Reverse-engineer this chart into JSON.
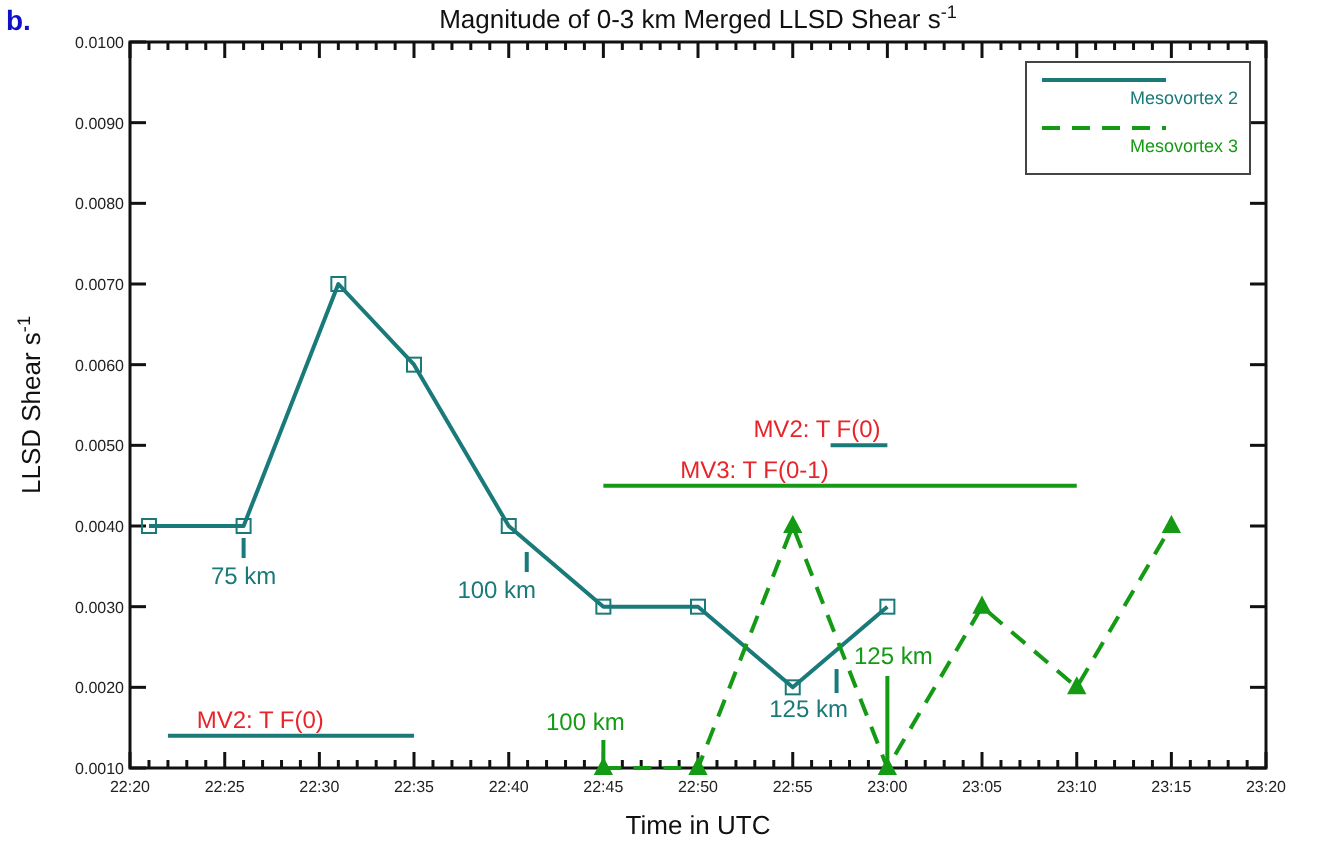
{
  "chart_data": {
    "type": "line",
    "title": "Magnitude of 0-3 km Merged LLSD Shear s$^{-1}$",
    "xlabel": "Time in UTC",
    "ylabel": "LLSD Shear s$^{-1}$",
    "xlim": [
      22.3333,
      23.3333
    ],
    "xticks": [
      {
        "value": 22.3333,
        "label": "22:20"
      },
      {
        "value": 22.35,
        "label": null
      },
      {
        "value": 22.3667,
        "label": null
      },
      {
        "value": 22.3833,
        "label": null
      },
      {
        "value": 22.4,
        "label": null
      },
      {
        "value": 22.4167,
        "label": "22:25"
      },
      {
        "value": 22.4333,
        "label": null
      },
      {
        "value": 22.45,
        "label": null
      },
      {
        "value": 22.4667,
        "label": null
      },
      {
        "value": 22.4833,
        "label": null
      },
      {
        "value": 22.5,
        "label": "22:30"
      },
      {
        "value": 22.5167,
        "label": null
      },
      {
        "value": 22.5333,
        "label": null
      },
      {
        "value": 22.55,
        "label": null
      },
      {
        "value": 22.5667,
        "label": null
      },
      {
        "value": 22.5833,
        "label": "22:35"
      },
      {
        "value": 22.6,
        "label": null
      },
      {
        "value": 22.6167,
        "label": null
      },
      {
        "value": 22.6333,
        "label": null
      },
      {
        "value": 22.65,
        "label": null
      },
      {
        "value": 22.6667,
        "label": "22:40"
      },
      {
        "value": 22.6833,
        "label": null
      },
      {
        "value": 22.7,
        "label": null
      },
      {
        "value": 22.7167,
        "label": null
      },
      {
        "value": 22.7333,
        "label": null
      },
      {
        "value": 22.75,
        "label": "22:45"
      },
      {
        "value": 22.7667,
        "label": null
      },
      {
        "value": 22.7833,
        "label": null
      },
      {
        "value": 22.8,
        "label": null
      },
      {
        "value": 22.8167,
        "label": null
      },
      {
        "value": 22.8333,
        "label": "22:50"
      },
      {
        "value": 22.85,
        "label": null
      },
      {
        "value": 22.8667,
        "label": null
      },
      {
        "value": 22.8833,
        "label": null
      },
      {
        "value": 22.9,
        "label": null
      },
      {
        "value": 22.9167,
        "label": "22:55"
      },
      {
        "value": 22.9333,
        "label": null
      },
      {
        "value": 22.95,
        "label": null
      },
      {
        "value": 22.9667,
        "label": null
      },
      {
        "value": 22.9833,
        "label": null
      },
      {
        "value": 23.0,
        "label": "23:00"
      },
      {
        "value": 23.0167,
        "label": null
      },
      {
        "value": 23.0333,
        "label": null
      },
      {
        "value": 23.05,
        "label": null
      },
      {
        "value": 23.0667,
        "label": null
      },
      {
        "value": 23.0833,
        "label": "23:05"
      },
      {
        "value": 23.1,
        "label": null
      },
      {
        "value": 23.1167,
        "label": null
      },
      {
        "value": 23.1333,
        "label": null
      },
      {
        "value": 23.15,
        "label": null
      },
      {
        "value": 23.1667,
        "label": "23:10"
      },
      {
        "value": 23.1833,
        "label": null
      },
      {
        "value": 23.2,
        "label": null
      },
      {
        "value": 23.2167,
        "label": null
      },
      {
        "value": 23.2333,
        "label": null
      },
      {
        "value": 23.25,
        "label": "23:15"
      },
      {
        "value": 23.2667,
        "label": null
      },
      {
        "value": 23.2833,
        "label": null
      },
      {
        "value": 23.3,
        "label": null
      },
      {
        "value": 23.3167,
        "label": null
      },
      {
        "value": 23.3333,
        "label": "23:20"
      }
    ],
    "ylim": [
      0.001,
      0.01
    ],
    "yticks": [
      {
        "value": 0.001,
        "label": "0.0010"
      },
      {
        "value": 0.002,
        "label": "0.0020"
      },
      {
        "value": 0.003,
        "label": "0.0030"
      },
      {
        "value": 0.004,
        "label": "0.0040"
      },
      {
        "value": 0.005,
        "label": "0.0050"
      },
      {
        "value": 0.006,
        "label": "0.0060"
      },
      {
        "value": 0.007,
        "label": "0.0070"
      },
      {
        "value": 0.008,
        "label": "0.0080"
      },
      {
        "value": 0.009,
        "label": "0.0090"
      },
      {
        "value": 0.01,
        "label": "0.0100"
      }
    ],
    "grid": false,
    "legend": "top right",
    "series": [
      {
        "name": "Mesovortex 2",
        "color": "#1a7a7a",
        "marker": "square",
        "line_style": "solid",
        "x": [
          22.35,
          22.4333,
          22.5167,
          22.5833,
          22.6667,
          22.75,
          22.8333,
          22.9167,
          23.0
        ],
        "values": [
          0.004,
          0.004,
          0.007,
          0.006,
          0.004,
          0.003,
          0.003,
          0.002,
          0.003
        ]
      },
      {
        "name": "Mesovortex 3",
        "color": "#149a14",
        "marker": "triangle",
        "line_style": "dashed",
        "x": [
          22.75,
          22.8333,
          22.9167,
          23.0,
          23.0833,
          23.1667,
          23.25
        ],
        "values": [
          0.001,
          0.001,
          0.004,
          0.001,
          0.003,
          0.002,
          0.004
        ]
      },
      {
        "type": "line",
        "color": "#1a7a7a",
        "marker": "none",
        "line_style": "solid",
        "x": [
          22.3667,
          22.5833
        ],
        "values": [
          0.0014,
          0.0014
        ]
      },
      {
        "type": "line",
        "color": "#1a7a7a",
        "marker": "none",
        "line_style": "solid",
        "x": [
          22.95,
          23.0
        ],
        "values": [
          0.005,
          0.005
        ]
      },
      {
        "type": "line",
        "color": "#149a14",
        "marker": "none",
        "line_style": "solid",
        "x": [
          22.75,
          23.1667
        ],
        "values": [
          0.0045,
          0.0045
        ]
      }
    ],
    "annotations": [
      "b.",
      {
        "text": "75 km",
        "x": 22.4333,
        "y": 0.004
      },
      {
        "text": "100 km",
        "x": 22.6667,
        "y": 0.004
      },
      {
        "text": "125 km",
        "x": 22.95,
        "y": 0.0024
      },
      {
        "text": "100 km",
        "x": 22.75,
        "y": 0.001
      },
      {
        "text": "125 km",
        "x": 23.0,
        "y": 0.001
      },
      {
        "text": "MV2: T F(0)",
        "x": 22.448,
        "y": 0.0014
      },
      {
        "text": "MV2: T F(0)",
        "x": 22.975,
        "y": 0.005
      },
      {
        "text": "MV3: T F(0-1)",
        "x": 22.883,
        "y": 0.0045
      }
    ]
  }
}
